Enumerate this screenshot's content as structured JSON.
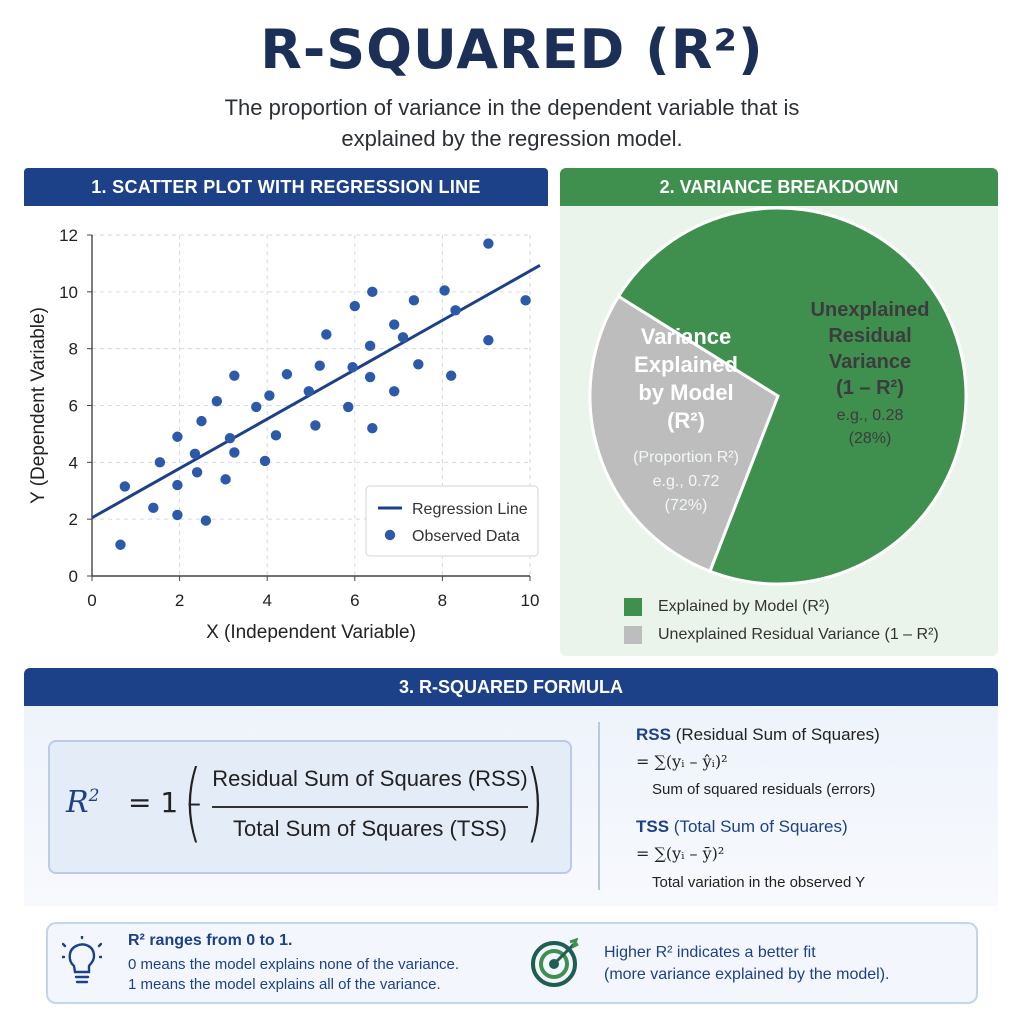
{
  "header": {
    "title": "R-SQUARED (R²)",
    "subtitle": "The proportion of variance in the dependent variable that is explained by the regression model."
  },
  "panels": {
    "scatter_title": "1. SCATTER PLOT WITH REGRESSION LINE",
    "variance_title": "2. VARIANCE BREAKDOWN",
    "formula_title": "3. R-SQUARED FORMULA"
  },
  "colors": {
    "navy": "#1d4189",
    "green": "#3f8f4f",
    "gray": "#bdbdbd",
    "point": "#2c5aa8"
  },
  "chart_data": [
    {
      "type": "scatter",
      "title": "1. SCATTER PLOT WITH REGRESSION LINE",
      "xlabel": "X (Independent Variable)",
      "ylabel": "Y (Dependent Variable)",
      "xlim": [
        0,
        10
      ],
      "ylim": [
        0,
        12
      ],
      "xticks": [
        "0",
        "2",
        "4",
        "6",
        "8",
        "10"
      ],
      "yticks": [
        "0",
        "2",
        "4",
        "6",
        "8",
        "10",
        "12"
      ],
      "grid": true,
      "legend": "bottom-right",
      "series": [
        {
          "name": "Observed Data",
          "points": [
            [
              0.65,
              1.1
            ],
            [
              0.75,
              3.15
            ],
            [
              1.4,
              2.4
            ],
            [
              1.55,
              4.0
            ],
            [
              1.95,
              2.15
            ],
            [
              1.95,
              3.2
            ],
            [
              1.95,
              4.9
            ],
            [
              2.35,
              4.3
            ],
            [
              2.4,
              3.65
            ],
            [
              2.5,
              5.45
            ],
            [
              2.6,
              1.95
            ],
            [
              2.85,
              6.15
            ],
            [
              3.05,
              3.4
            ],
            [
              3.15,
              4.85
            ],
            [
              3.25,
              4.35
            ],
            [
              3.25,
              7.05
            ],
            [
              3.75,
              5.95
            ],
            [
              3.95,
              4.05
            ],
            [
              4.05,
              6.35
            ],
            [
              4.2,
              4.95
            ],
            [
              4.45,
              7.1
            ],
            [
              4.95,
              6.5
            ],
            [
              5.1,
              5.3
            ],
            [
              5.2,
              7.4
            ],
            [
              5.35,
              8.5
            ],
            [
              5.85,
              5.95
            ],
            [
              5.95,
              7.35
            ],
            [
              6.0,
              9.5
            ],
            [
              6.35,
              8.1
            ],
            [
              6.35,
              7.0
            ],
            [
              6.4,
              5.2
            ],
            [
              6.4,
              10.0
            ],
            [
              6.9,
              8.85
            ],
            [
              6.9,
              6.5
            ],
            [
              7.1,
              8.4
            ],
            [
              7.35,
              9.7
            ],
            [
              7.45,
              7.45
            ],
            [
              8.05,
              10.05
            ],
            [
              8.2,
              7.05
            ],
            [
              8.3,
              9.35
            ],
            [
              9.05,
              11.7
            ],
            [
              9.05,
              8.3
            ],
            [
              9.9,
              9.7
            ]
          ]
        },
        {
          "name": "Regression Line",
          "line": [
            [
              0,
              2.05
            ],
            [
              10,
              10.65
            ]
          ]
        }
      ]
    },
    {
      "type": "pie",
      "title": "2. VARIANCE BREAKDOWN",
      "slices": [
        {
          "label": "Variance Explained by Model (R²)",
          "value": 0.72,
          "label_lines": [
            "Variance",
            "Explained",
            "by Model",
            "(R²)"
          ],
          "note_lines": [
            "(Proportion R²)",
            "e.g., 0.72",
            "(72%)"
          ],
          "color": "#3f8f4f"
        },
        {
          "label": "Unexplained Residual Variance (1 – R²)",
          "value": 0.28,
          "label_lines": [
            "Unexplained",
            "Residual",
            "Variance",
            "(1 – R²)"
          ],
          "note_lines": [
            "e.g., 0.28",
            "(28%)"
          ],
          "color": "#bdbdbd"
        }
      ],
      "legend": [
        "Explained by Model (R²)",
        "Unexplained Residual Variance (1 – R²)"
      ]
    }
  ],
  "formula": {
    "lhs": "R",
    "lhs_sup": "2",
    "equals_one_minus": "= 1 –",
    "numerator": "Residual Sum of Squares (RSS)",
    "denominator": "Total Sum of Squares (TSS)"
  },
  "definitions": {
    "rss_abbr": "RSS",
    "rss_name": "(Residual Sum of Squares)",
    "rss_eq": "= ∑(yᵢ – ŷᵢ)²",
    "rss_note": "Sum of squared residuals (errors)",
    "tss_abbr": "TSS",
    "tss_name": "(Total Sum of Squares)",
    "tss_eq": "= ∑(yᵢ – ȳ)²",
    "tss_note": "Total variation in the observed Y"
  },
  "tips": {
    "range_title": "R² ranges from 0 to 1.",
    "range_zero": "0 means the model explains none of the variance.",
    "range_one": "1 means the model explains all of the variance.",
    "higher_line1": "Higher R² indicates a better fit",
    "higher_line2": "(more variance explained by the model).",
    "icons": [
      "lightbulb-icon",
      "target-icon"
    ]
  }
}
